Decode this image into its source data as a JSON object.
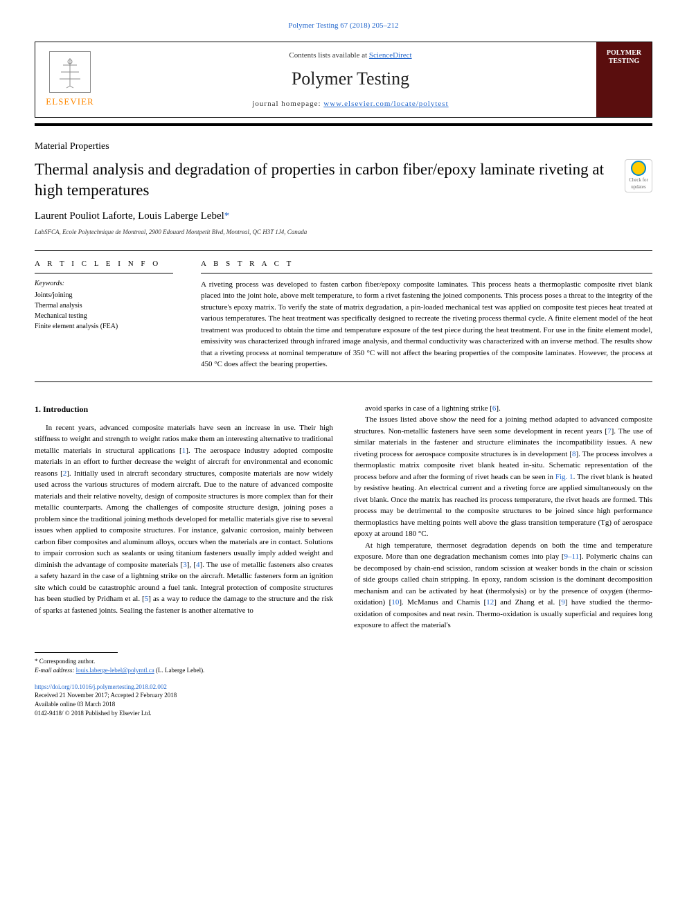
{
  "citation": "Polymer Testing 67 (2018) 205–212",
  "header": {
    "contents_prefix": "Contents lists available at ",
    "contents_link": "ScienceDirect",
    "journal_title": "Polymer Testing",
    "homepage_prefix": "journal homepage: ",
    "homepage_url": "www.elsevier.com/locate/polytest",
    "publisher_name": "ELSEVIER",
    "cover_text": "POLYMER TESTING"
  },
  "section_label": "Material Properties",
  "article_title": "Thermal analysis and degradation of properties in carbon fiber/epoxy laminate riveting at high temperatures",
  "updates_label": "Check for updates",
  "authors": "Laurent Pouliot Laforte, Louis Laberge Lebel",
  "corresp_marker": "*",
  "affiliation": "LabSFCA, Ecole Polytechnique de Montreal, 2900 Edouard Montpetit Blvd, Montreal, QC H3T 1J4, Canada",
  "info_heading": "A R T I C L E  I N F O",
  "keywords_label": "Keywords:",
  "keywords": [
    "Joints/joining",
    "Thermal analysis",
    "Mechanical testing",
    "Finite element analysis (FEA)"
  ],
  "abstract_heading": "A B S T R A C T",
  "abstract_text": "A riveting process was developed to fasten carbon fiber/epoxy composite laminates. This process heats a thermoplastic composite rivet blank placed into the joint hole, above melt temperature, to form a rivet fastening the joined components. This process poses a threat to the integrity of the structure's epoxy matrix. To verify the state of matrix degradation, a pin-loaded mechanical test was applied on composite test pieces heat treated at various temperatures. The heat treatment was specifically designed to recreate the riveting process thermal cycle. A finite element model of the heat treatment was produced to obtain the time and temperature exposure of the test piece during the heat treatment. For use in the finite element model, emissivity was characterized through infrared image analysis, and thermal conductivity was characterized with an inverse method. The results show that a riveting process at nominal temperature of 350 °C will not affect the bearing properties of the composite laminates. However, the process at 450 °C does affect the bearing properties.",
  "body": {
    "intro_heading": "1. Introduction",
    "col1_p1": "In recent years, advanced composite materials have seen an increase in use. Their high stiffness to weight and strength to weight ratios make them an interesting alternative to traditional metallic materials in structural applications [1]. The aerospace industry adopted composite materials in an effort to further decrease the weight of aircraft for environmental and economic reasons [2]. Initially used in aircraft secondary structures, composite materials are now widely used across the various structures of modern aircraft. Due to the nature of advanced composite materials and their relative novelty, design of composite structures is more complex than for their metallic counterparts. Among the challenges of composite structure design, joining poses a problem since the traditional joining methods developed for metallic materials give rise to several issues when applied to composite structures. For instance, galvanic corrosion, mainly between carbon fiber composites and aluminum alloys, occurs when the materials are in contact. Solutions to impair corrosion such as sealants or using titanium fasteners usually imply added weight and diminish the advantage of composite materials [3], [4]. The use of metallic fasteners also creates a safety hazard in the case of a lightning strike on the aircraft. Metallic fasteners form an ignition site which could be catastrophic around a fuel tank. Integral protection of composite structures has been studied by Pridham et al. [5] as a way to reduce the damage to the structure and the risk of sparks at fastened joints. Sealing the fastener is another alternative to",
    "col2_p1": "avoid sparks in case of a lightning strike [6].",
    "col2_p2": "The issues listed above show the need for a joining method adapted to advanced composite structures. Non-metallic fasteners have seen some development in recent years [7]. The use of similar materials in the fastener and structure eliminates the incompatibility issues. A new riveting process for aerospace composite structures is in development [8]. The process involves a thermoplastic matrix composite rivet blank heated in-situ. Schematic representation of the process before and after the forming of rivet heads can be seen in Fig. 1. The rivet blank is heated by resistive heating. An electrical current and a riveting force are applied simultaneously on the rivet blank. Once the matrix has reached its process temperature, the rivet heads are formed. This process may be detrimental to the composite structures to be joined since high performance thermoplastics have melting points well above the glass transition temperature (Tg) of aerospace epoxy at around 180 °C.",
    "col2_p3": "At high temperature, thermoset degradation depends on both the time and temperature exposure. More than one degradation mechanism comes into play [9–11]. Polymeric chains can be decomposed by chain-end scission, random scission at weaker bonds in the chain or scission of side groups called chain stripping. In epoxy, random scission is the dominant decomposition mechanism and can be activated by heat (thermolysis) or by the presence of oxygen (thermo-oxidation) [10]. McManus and Chamis [12] and Zhang et al. [9] have studied the thermo-oxidation of composites and neat resin. Thermo-oxidation is usually superficial and requires long exposure to affect the material's"
  },
  "footnote": {
    "corresp_label": "* Corresponding author.",
    "email_label": "E-mail address: ",
    "email": "louis.laberge-lebel@polymtl.ca",
    "email_suffix": " (L. Laberge Lebel)."
  },
  "doi": "https://doi.org/10.1016/j.polymertesting.2018.02.002",
  "dates": {
    "received": "Received 21 November 2017; Accepted 2 February 2018",
    "online": "Available online 03 March 2018",
    "copyright": "0142-9418/ © 2018 Published by Elsevier Ltd."
  },
  "colors": {
    "link": "#2266cc",
    "publisher_orange": "#ff8800",
    "cover_bg": "#5a0e0e",
    "badge_ring": "#0088cc",
    "badge_fill": "#ffcc00"
  }
}
